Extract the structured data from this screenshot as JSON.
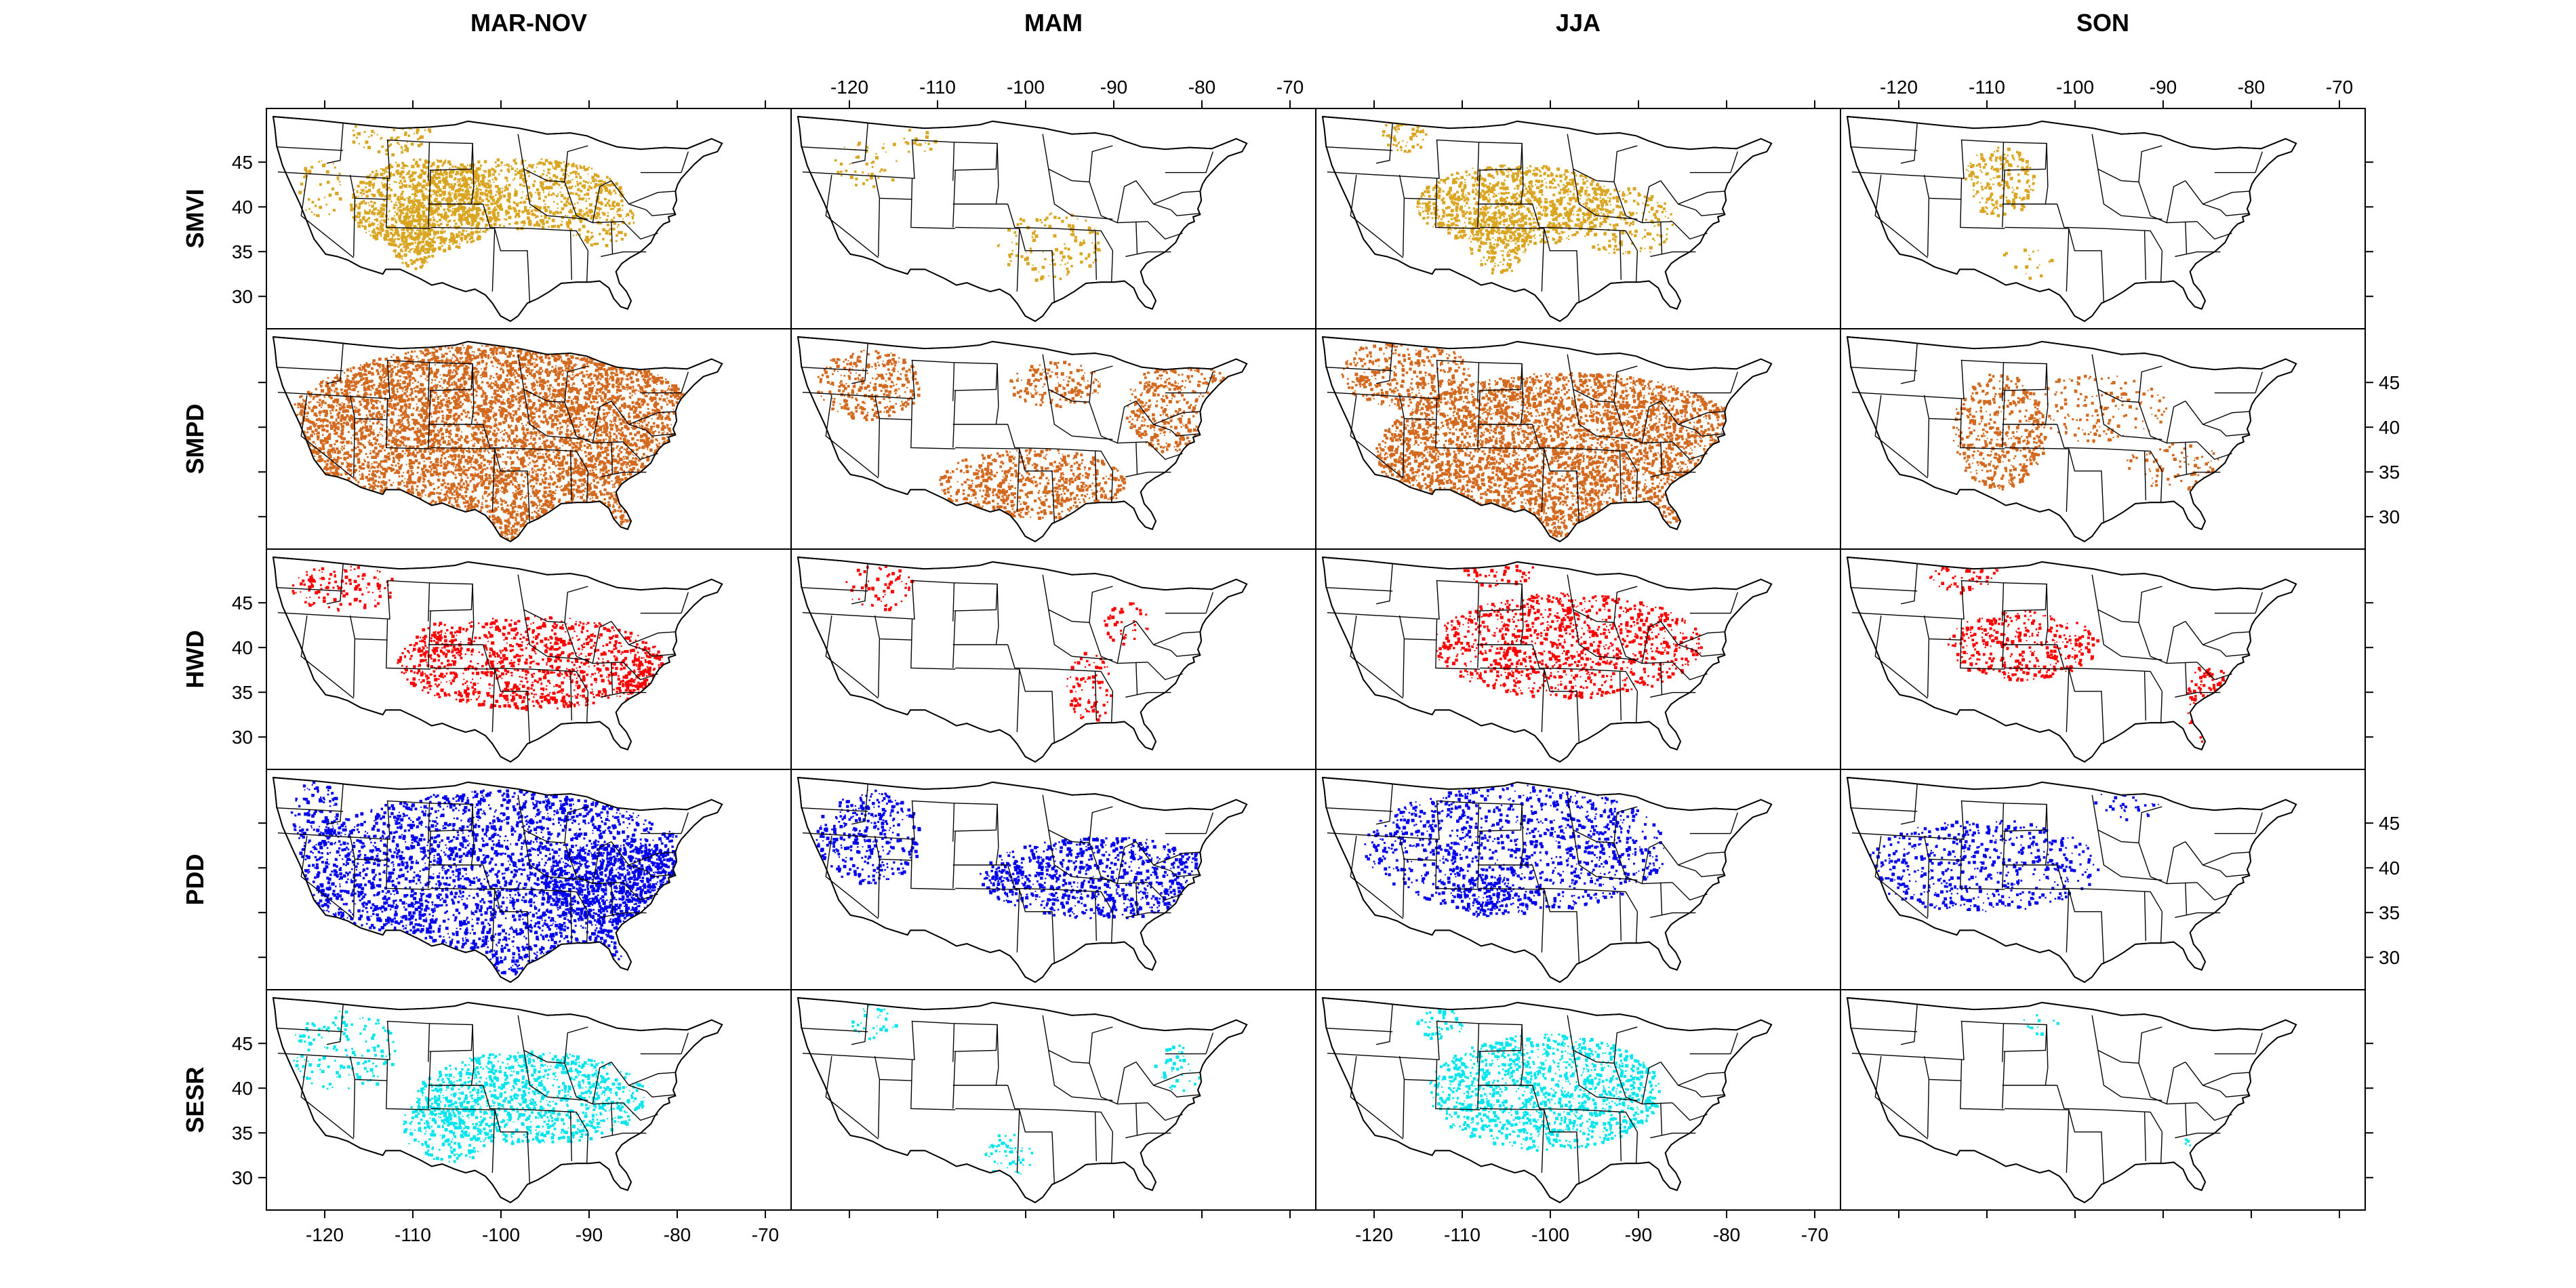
{
  "columns": [
    {
      "key": "marnov",
      "label": "MAR-NOV"
    },
    {
      "key": "mam",
      "label": "MAM"
    },
    {
      "key": "jja",
      "label": "JJA"
    },
    {
      "key": "son",
      "label": "SON"
    }
  ],
  "rows": [
    {
      "key": "smvi",
      "label": "SMVI",
      "color": "#DAA520"
    },
    {
      "key": "smpd",
      "label": "SMPD",
      "color": "#D2691E"
    },
    {
      "key": "hwd",
      "label": "HWD",
      "color": "#FF0000"
    },
    {
      "key": "pdd",
      "label": "PDD",
      "color": "#0000EE"
    },
    {
      "key": "sesr",
      "label": "SESR",
      "color": "#00E5EE"
    }
  ],
  "axes": {
    "longitude_ticks": [
      "-120",
      "-110",
      "-100",
      "-90",
      "-80",
      "-70"
    ],
    "latitude_ticks": [
      "45",
      "40",
      "35",
      "30"
    ]
  },
  "colors": {
    "background": "#ffffff",
    "outline": "#000000"
  }
}
